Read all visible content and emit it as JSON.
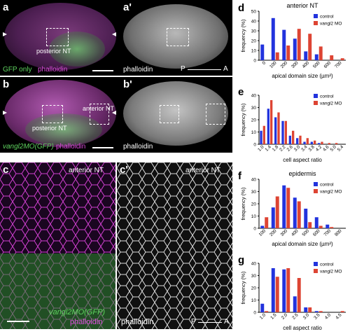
{
  "panel_a": {
    "letter": "a",
    "cap1": "GFP only",
    "cap2": "phalloidin"
  },
  "panel_a2": {
    "letter": "a'",
    "cap": "phalloidin",
    "p": "P",
    "a": "A"
  },
  "panel_a_box": {
    "label": "posterior NT"
  },
  "panel_b": {
    "letter": "b",
    "cap1": "vangl2MO(GFP)",
    "cap2": "phalloidin",
    "post": "posterior NT",
    "ant": "anterior NT"
  },
  "panel_b2": {
    "letter": "b'",
    "cap": "phalloidin"
  },
  "panel_c": {
    "letter": "c",
    "title": "anterior NT",
    "cap1": "vangl2MO(GFP)",
    "cap2": "phalloidin"
  },
  "panel_c2": {
    "letter": "c'",
    "title": "anterior NT",
    "cap": "phalloidin",
    "p": "P",
    "a": "A"
  },
  "colors": {
    "control": "#2233dd",
    "vangl2": "#dd4433"
  },
  "chart_data": [
    {
      "letter": "d",
      "type": "bar",
      "title": "anterior NT",
      "xlabel": "apical domain size (µm²)",
      "ylabel": "frequency (%)",
      "categories": [
        "0",
        "100",
        "200",
        "300",
        "400",
        "500",
        "600",
        "700"
      ],
      "ylim": [
        0,
        50
      ],
      "yticks": [
        0,
        10,
        20,
        30,
        40,
        50
      ],
      "series": [
        {
          "name": "control",
          "values": [
            16,
            43,
            31,
            22,
            9,
            6,
            0,
            0
          ]
        },
        {
          "name": "vangl2 MO",
          "values": [
            0,
            8,
            15,
            32,
            27,
            14,
            5,
            2
          ]
        }
      ]
    },
    {
      "letter": "e",
      "type": "bar",
      "title": "",
      "xlabel": "cell aspect ratio",
      "ylabel": "frequency (%)",
      "categories": [
        "1.0",
        "1.4",
        "1.8",
        "2.2",
        "2.6",
        "3.0",
        "3.4",
        "3.8",
        "4.2",
        "4.6",
        "5.0",
        "5.4"
      ],
      "ylim": [
        0,
        40
      ],
      "yticks": [
        0,
        10,
        20,
        30,
        40
      ],
      "series": [
        {
          "name": "control",
          "values": [
            11,
            29,
            22,
            19,
            7,
            5,
            2,
            2,
            1,
            0,
            0,
            0
          ]
        },
        {
          "name": "vangl2 MO",
          "values": [
            15,
            36,
            26,
            19,
            11,
            7,
            5,
            3,
            2,
            1,
            1,
            0
          ]
        }
      ]
    },
    {
      "letter": "f",
      "type": "bar",
      "title": "epidermis",
      "xlabel": "apical domain size (µm²)",
      "ylabel": "frequency (%)",
      "categories": [
        "100",
        "200",
        "300",
        "400",
        "500",
        "600",
        "700",
        "800"
      ],
      "ylim": [
        0,
        40
      ],
      "yticks": [
        0,
        10,
        20,
        30,
        40
      ],
      "series": [
        {
          "name": "control",
          "values": [
            2,
            17,
            35,
            25,
            16,
            9,
            3,
            0
          ]
        },
        {
          "name": "vangl2 MO",
          "values": [
            9,
            26,
            33,
            22,
            5,
            2,
            1,
            0
          ]
        }
      ]
    },
    {
      "letter": "g",
      "type": "bar",
      "title": "",
      "xlabel": "cell aspect ratio",
      "ylabel": "frequency (%)",
      "categories": [
        "1.0",
        "1.5",
        "2.0",
        "2.5",
        "3.0",
        "3.5",
        "4.0",
        "4.5"
      ],
      "ylim": [
        0,
        40
      ],
      "yticks": [
        0,
        10,
        20,
        30,
        40
      ],
      "series": [
        {
          "name": "control",
          "values": [
            7,
            36,
            35,
            13,
            4,
            1,
            0,
            0
          ]
        },
        {
          "name": "vangl2 MO",
          "values": [
            1,
            29,
            36,
            28,
            4,
            1,
            0,
            1
          ]
        }
      ]
    }
  ]
}
